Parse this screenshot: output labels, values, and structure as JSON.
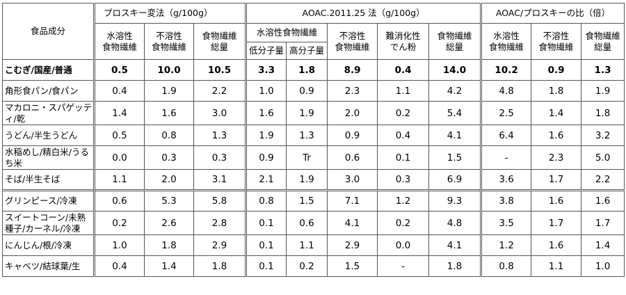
{
  "header": {
    "food_col": "食品成分",
    "group1": "プロスキー変法（g/100g）",
    "group2": "AOAC.2011.25 法（g/100g）",
    "group3": "AOAC/プロスキーの比（倍）",
    "g1_cols": [
      "水溶性\n食物繊維",
      "不溶性\n食物繊維",
      "食物繊維\n総量"
    ],
    "g2_soluble": "水溶性食物繊維",
    "g2_low": "低分子量",
    "g2_high": "高分子量",
    "g2_cols": [
      "不溶性\n食物繊維",
      "難消化性\nでん粉",
      "食物繊維\n総量"
    ],
    "g3_cols": [
      "水溶性\n食物繊維",
      "不溶性\n食物繊維",
      "食物繊維\n総量"
    ]
  },
  "rows": [
    {
      "name": "こむぎ/国産/普通",
      "vals": [
        "0.5",
        "10.0",
        "10.5",
        "3.3",
        "1.8",
        "8.9",
        "0.4",
        "14.0",
        "10.2",
        "0.9",
        "1.3"
      ]
    },
    {
      "name": "角形食パン/食パン",
      "vals": [
        "0.4",
        "1.9",
        "2.2",
        "1.0",
        "0.9",
        "2.3",
        "1.1",
        "4.2",
        "4.8",
        "1.8",
        "1.9"
      ]
    },
    {
      "name": "マカロニ・スパゲッティ/乾",
      "vals": [
        "1.4",
        "1.6",
        "3.0",
        "1.6",
        "1.9",
        "2.0",
        "0.2",
        "5.4",
        "2.5",
        "1.4",
        "1.8"
      ]
    },
    {
      "name": "うどん/半生うどん",
      "vals": [
        "0.5",
        "0.8",
        "1.3",
        "1.9",
        "1.3",
        "0.9",
        "0.4",
        "4.1",
        "6.4",
        "1.6",
        "3.2"
      ]
    },
    {
      "name": "水稲めし/精白米/うるち米",
      "vals": [
        "0.0",
        "0.3",
        "0.3",
        "0.9",
        "Tr",
        "0.6",
        "0.1",
        "1.5",
        "-",
        "2.3",
        "5.0"
      ]
    },
    {
      "name": "そば/半生そば",
      "vals": [
        "1.1",
        "2.0",
        "3.1",
        "2.1",
        "1.9",
        "3.0",
        "0.3",
        "6.9",
        "3.6",
        "1.7",
        "2.2"
      ]
    },
    {
      "name": "グリンピース/冷凍",
      "vals": [
        "0.6",
        "5.3",
        "5.8",
        "0.8",
        "1.5",
        "7.1",
        "1.2",
        "9.3",
        "3.8",
        "1.6",
        "1.6"
      ]
    },
    {
      "name": "スイートコーン/未熟種子/カーネル/冷凍",
      "vals": [
        "0.2",
        "2.6",
        "2.8",
        "0.1",
        "0.6",
        "4.1",
        "0.2",
        "4.8",
        "3.5",
        "1.7",
        "1.7"
      ]
    },
    {
      "name": "にんじん/根/冷凍",
      "vals": [
        "1.0",
        "1.8",
        "2.9",
        "0.1",
        "1.1",
        "2.9",
        "0.0",
        "4.1",
        "1.2",
        "1.6",
        "1.4"
      ]
    },
    {
      "name": "キャベツ/結球葉/生",
      "vals": [
        "0.4",
        "1.4",
        "1.8",
        "0.1",
        "0.2",
        "1.5",
        "-",
        "1.8",
        "0.8",
        "1.1",
        "1.0"
      ]
    }
  ]
}
